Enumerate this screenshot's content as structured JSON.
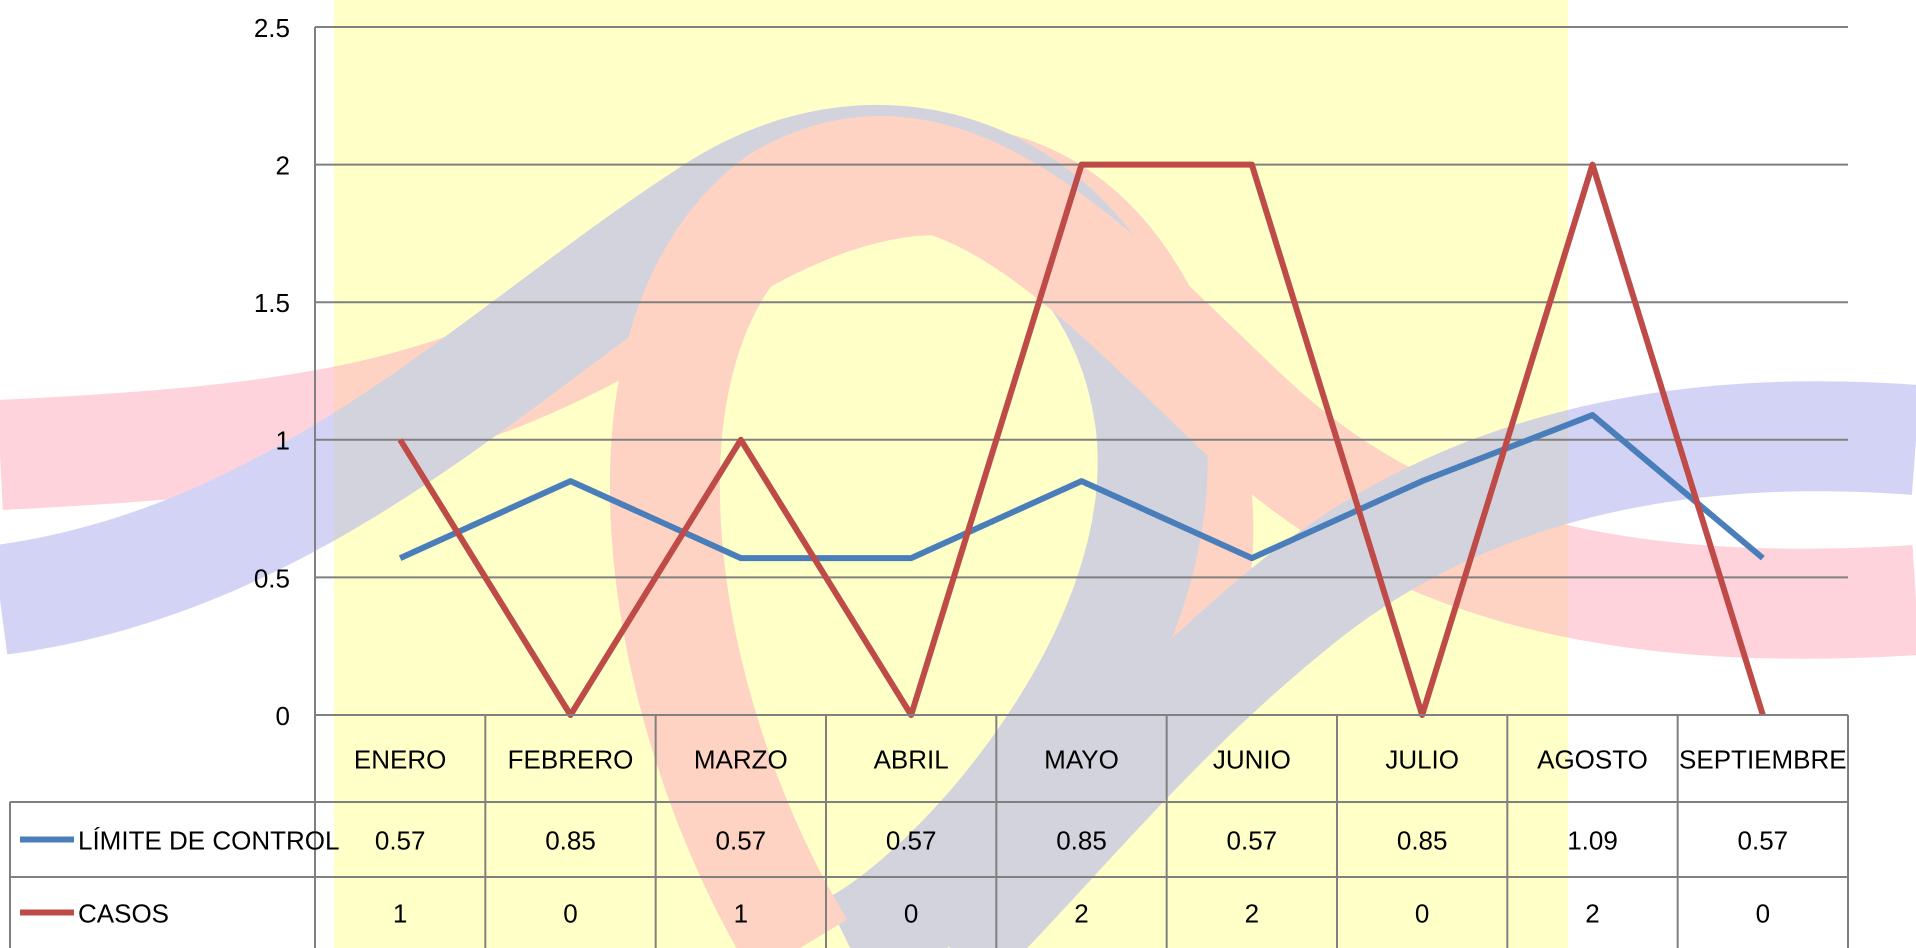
{
  "chart_data": {
    "type": "line",
    "categories": [
      "ENERO",
      "FEBRERO",
      "MARZO",
      "ABRIL",
      "MAYO",
      "JUNIO",
      "JULIO",
      "AGOSTO",
      "SEPTIEMBRE"
    ],
    "series": [
      {
        "name": "LÍMITE DE CONTROL",
        "color": "#4a7ebb",
        "values": [
          0.57,
          0.85,
          0.57,
          0.57,
          0.85,
          0.57,
          0.85,
          1.09,
          0.57
        ]
      },
      {
        "name": "CASOS",
        "color": "#be4b48",
        "values": [
          1,
          0,
          1,
          0,
          2,
          2,
          0,
          2,
          0
        ]
      }
    ],
    "ylim": [
      0,
      2.5
    ],
    "yticks": [
      0,
      0.5,
      1,
      1.5,
      2,
      2.5
    ],
    "grid": true,
    "data_table": true
  }
}
